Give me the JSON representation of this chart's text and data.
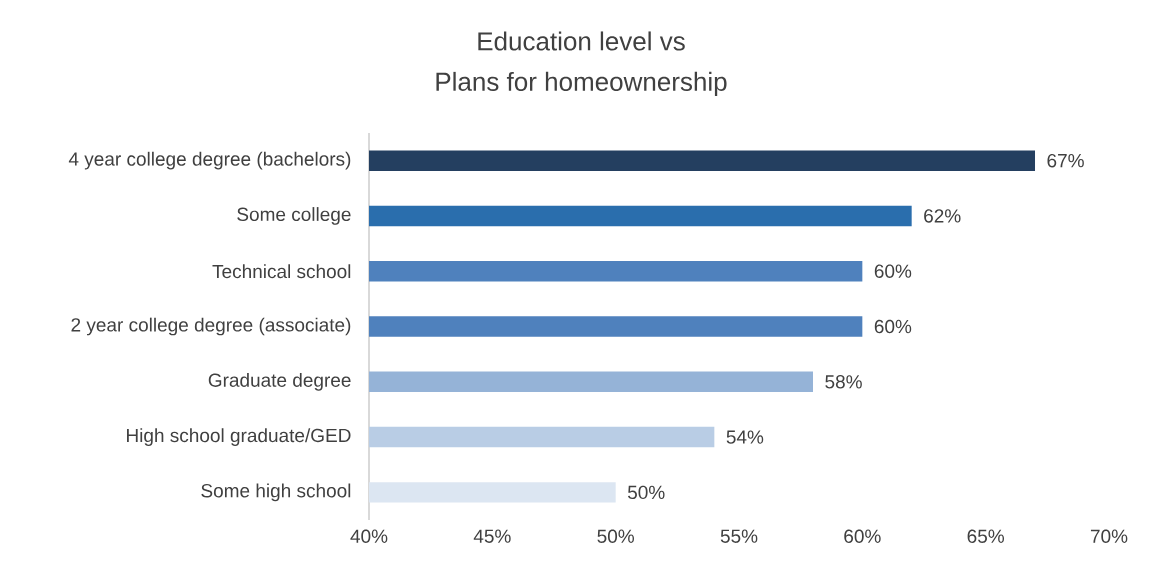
{
  "chart_data": {
    "type": "bar",
    "orientation": "horizontal",
    "title": "Education level vs",
    "subtitle": "Plans for homeownership",
    "categories": [
      "4 year college degree (bachelors)",
      "Some college",
      "Technical school",
      "2 year college degree (associate)",
      "Graduate degree",
      "High school graduate/GED",
      "Some high school"
    ],
    "values": [
      67,
      62,
      60,
      60,
      58,
      54,
      50
    ],
    "value_labels": [
      "67%",
      "62%",
      "60%",
      "60%",
      "58%",
      "54%",
      "50%"
    ],
    "colors": [
      "#243f60",
      "#2a6ead",
      "#4f81bd",
      "#4f81bd",
      "#95b3d7",
      "#b9cde5",
      "#dce6f2"
    ],
    "xlim": [
      40,
      70
    ],
    "xticks": [
      {
        "value": 40,
        "label": "40%"
      },
      {
        "value": 45,
        "label": "45%"
      },
      {
        "value": 50,
        "label": "50%"
      },
      {
        "value": 55,
        "label": "55%"
      },
      {
        "value": 60,
        "label": "60%"
      },
      {
        "value": 65,
        "label": "65%"
      },
      {
        "value": 70,
        "label": "70%"
      }
    ],
    "grid": false
  }
}
